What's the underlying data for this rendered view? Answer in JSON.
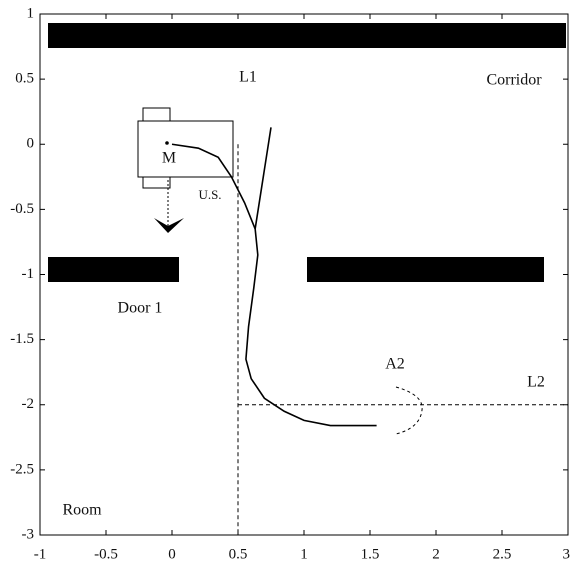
{
  "chart_data": {
    "type": "line",
    "xlim": [
      -1,
      3
    ],
    "ylim": [
      -3,
      1
    ],
    "xticks": [
      -1,
      -0.5,
      0,
      0.5,
      1,
      1.5,
      2,
      2.5,
      3
    ],
    "yticks": [
      1,
      0.5,
      0,
      -0.5,
      -1,
      -1.5,
      -2,
      -2.5,
      -3
    ],
    "series": [
      {
        "color": "#000",
        "dashed": false,
        "x": [
          0,
          0.2,
          0.35,
          0.45,
          0.55,
          0.63,
          0.65,
          0.62,
          0.58,
          0.56,
          0.6,
          0.7,
          0.85,
          1.0,
          1.2,
          1.55
        ],
        "values": [
          0,
          -0.03,
          -0.1,
          -0.25,
          -0.45,
          -0.65,
          -0.85,
          -1.1,
          -1.4,
          -1.65,
          -1.8,
          -1.95,
          -2.05,
          -2.12,
          -2.16,
          -2.16
        ]
      },
      {
        "color": "#000",
        "dashed": false,
        "x": [
          0.63,
          0.75
        ],
        "values": [
          -0.65,
          0.13
        ]
      },
      {
        "color": "#000",
        "dashed": true,
        "x": [
          0.5,
          0.5
        ],
        "values": [
          0,
          -3
        ]
      },
      {
        "color": "#000",
        "dashed": true,
        "x": [
          0.5,
          3
        ],
        "values": [
          -2,
          -2
        ]
      }
    ],
    "annotations": [
      "L1",
      "Corridor",
      "M",
      "U.S.",
      "Door 1",
      "A2",
      "L2",
      "Room"
    ]
  }
}
